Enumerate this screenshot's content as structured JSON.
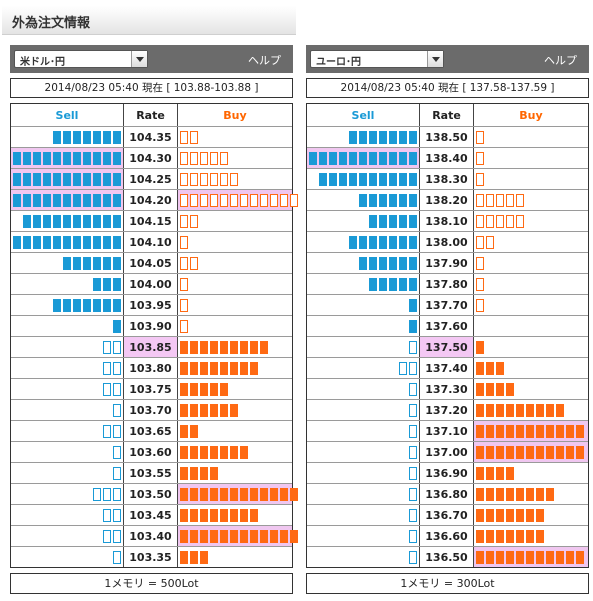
{
  "page": {
    "title": "外為注文情報"
  },
  "colors": {
    "sell": "#1a9ad6",
    "buy": "#ff6a13",
    "highlight": "#f0c7f0",
    "header": "#6b6b6b"
  },
  "panels": [
    {
      "pair": "米ドル･円",
      "help": "ヘルプ",
      "status": "2014/08/23  05:40 現在 [ 103.88-103.88 ]",
      "col_sell": "Sell",
      "col_rate": "Rate",
      "col_buy": "Buy",
      "footer": "1メモリ = 500Lot",
      "rows": [
        {
          "rate": "104.35",
          "sell": 7,
          "sell_type": "f",
          "buy": 2,
          "buy_type": "o",
          "hl_sell": false,
          "hl_buy": false,
          "hl_rate": false
        },
        {
          "rate": "104.30",
          "sell": 11,
          "sell_type": "f",
          "buy": 5,
          "buy_type": "o",
          "hl_sell": true,
          "hl_buy": false,
          "hl_rate": false
        },
        {
          "rate": "104.25",
          "sell": 11,
          "sell_type": "f",
          "buy": 6,
          "buy_type": "o",
          "hl_sell": true,
          "hl_buy": false,
          "hl_rate": false
        },
        {
          "rate": "104.20",
          "sell": 11,
          "sell_type": "f",
          "buy": 12,
          "buy_type": "o",
          "hl_sell": true,
          "hl_buy": true,
          "hl_rate": false
        },
        {
          "rate": "104.15",
          "sell": 10,
          "sell_type": "f",
          "buy": 2,
          "buy_type": "o",
          "hl_sell": false,
          "hl_buy": false,
          "hl_rate": false
        },
        {
          "rate": "104.10",
          "sell": 11,
          "sell_type": "f",
          "buy": 1,
          "buy_type": "o",
          "hl_sell": false,
          "hl_buy": false,
          "hl_rate": false
        },
        {
          "rate": "104.05",
          "sell": 6,
          "sell_type": "f",
          "buy": 2,
          "buy_type": "o",
          "hl_sell": false,
          "hl_buy": false,
          "hl_rate": false
        },
        {
          "rate": "104.00",
          "sell": 3,
          "sell_type": "f",
          "buy": 1,
          "buy_type": "o",
          "hl_sell": false,
          "hl_buy": false,
          "hl_rate": false
        },
        {
          "rate": "103.95",
          "sell": 7,
          "sell_type": "f",
          "buy": 1,
          "buy_type": "o",
          "hl_sell": false,
          "hl_buy": false,
          "hl_rate": false
        },
        {
          "rate": "103.90",
          "sell": 1,
          "sell_type": "f",
          "buy": 1,
          "buy_type": "o",
          "hl_sell": false,
          "hl_buy": false,
          "hl_rate": false
        },
        {
          "rate": "103.85",
          "sell": 2,
          "sell_type": "o",
          "buy": 9,
          "buy_type": "f",
          "hl_sell": false,
          "hl_buy": false,
          "hl_rate": true
        },
        {
          "rate": "103.80",
          "sell": 2,
          "sell_type": "o",
          "buy": 8,
          "buy_type": "f",
          "hl_sell": false,
          "hl_buy": false,
          "hl_rate": false
        },
        {
          "rate": "103.75",
          "sell": 2,
          "sell_type": "o",
          "buy": 5,
          "buy_type": "f",
          "hl_sell": false,
          "hl_buy": false,
          "hl_rate": false
        },
        {
          "rate": "103.70",
          "sell": 1,
          "sell_type": "o",
          "buy": 6,
          "buy_type": "f",
          "hl_sell": false,
          "hl_buy": false,
          "hl_rate": false
        },
        {
          "rate": "103.65",
          "sell": 2,
          "sell_type": "o",
          "buy": 2,
          "buy_type": "f",
          "hl_sell": false,
          "hl_buy": false,
          "hl_rate": false
        },
        {
          "rate": "103.60",
          "sell": 1,
          "sell_type": "o",
          "buy": 7,
          "buy_type": "f",
          "hl_sell": false,
          "hl_buy": false,
          "hl_rate": false
        },
        {
          "rate": "103.55",
          "sell": 1,
          "sell_type": "o",
          "buy": 4,
          "buy_type": "f",
          "hl_sell": false,
          "hl_buy": false,
          "hl_rate": false
        },
        {
          "rate": "103.50",
          "sell": 3,
          "sell_type": "o",
          "buy": 12,
          "buy_type": "f",
          "hl_sell": false,
          "hl_buy": true,
          "hl_rate": false
        },
        {
          "rate": "103.45",
          "sell": 2,
          "sell_type": "o",
          "buy": 8,
          "buy_type": "f",
          "hl_sell": false,
          "hl_buy": false,
          "hl_rate": false
        },
        {
          "rate": "103.40",
          "sell": 2,
          "sell_type": "o",
          "buy": 12,
          "buy_type": "f",
          "hl_sell": false,
          "hl_buy": true,
          "hl_rate": false
        },
        {
          "rate": "103.35",
          "sell": 1,
          "sell_type": "o",
          "buy": 3,
          "buy_type": "f",
          "hl_sell": false,
          "hl_buy": false,
          "hl_rate": false
        }
      ]
    },
    {
      "pair": "ユーロ･円",
      "help": "ヘルプ",
      "status": "2014/08/23  05:40 現在 [ 137.58-137.59 ]",
      "col_sell": "Sell",
      "col_rate": "Rate",
      "col_buy": "Buy",
      "footer": "1メモリ = 300Lot",
      "rows": [
        {
          "rate": "138.50",
          "sell": 7,
          "sell_type": "f",
          "buy": 1,
          "buy_type": "o",
          "hl_sell": false,
          "hl_buy": false,
          "hl_rate": false
        },
        {
          "rate": "138.40",
          "sell": 11,
          "sell_type": "f",
          "buy": 1,
          "buy_type": "o",
          "hl_sell": true,
          "hl_buy": false,
          "hl_rate": false
        },
        {
          "rate": "138.30",
          "sell": 10,
          "sell_type": "f",
          "buy": 1,
          "buy_type": "o",
          "hl_sell": false,
          "hl_buy": false,
          "hl_rate": false
        },
        {
          "rate": "138.20",
          "sell": 6,
          "sell_type": "f",
          "buy": 5,
          "buy_type": "o",
          "hl_sell": false,
          "hl_buy": false,
          "hl_rate": false
        },
        {
          "rate": "138.10",
          "sell": 5,
          "sell_type": "f",
          "buy": 5,
          "buy_type": "o",
          "hl_sell": false,
          "hl_buy": false,
          "hl_rate": false
        },
        {
          "rate": "138.00",
          "sell": 7,
          "sell_type": "f",
          "buy": 2,
          "buy_type": "o",
          "hl_sell": false,
          "hl_buy": false,
          "hl_rate": false
        },
        {
          "rate": "137.90",
          "sell": 6,
          "sell_type": "f",
          "buy": 1,
          "buy_type": "o",
          "hl_sell": false,
          "hl_buy": false,
          "hl_rate": false
        },
        {
          "rate": "137.80",
          "sell": 5,
          "sell_type": "f",
          "buy": 1,
          "buy_type": "o",
          "hl_sell": false,
          "hl_buy": false,
          "hl_rate": false
        },
        {
          "rate": "137.70",
          "sell": 1,
          "sell_type": "f",
          "buy": 1,
          "buy_type": "o",
          "hl_sell": false,
          "hl_buy": false,
          "hl_rate": false
        },
        {
          "rate": "137.60",
          "sell": 1,
          "sell_type": "f",
          "buy": 0,
          "buy_type": "o",
          "hl_sell": false,
          "hl_buy": false,
          "hl_rate": false
        },
        {
          "rate": "137.50",
          "sell": 1,
          "sell_type": "o",
          "buy": 1,
          "buy_type": "f",
          "hl_sell": false,
          "hl_buy": false,
          "hl_rate": true
        },
        {
          "rate": "137.40",
          "sell": 2,
          "sell_type": "o",
          "buy": 3,
          "buy_type": "f",
          "hl_sell": false,
          "hl_buy": false,
          "hl_rate": false
        },
        {
          "rate": "137.30",
          "sell": 1,
          "sell_type": "o",
          "buy": 4,
          "buy_type": "f",
          "hl_sell": false,
          "hl_buy": false,
          "hl_rate": false
        },
        {
          "rate": "137.20",
          "sell": 1,
          "sell_type": "o",
          "buy": 9,
          "buy_type": "f",
          "hl_sell": false,
          "hl_buy": false,
          "hl_rate": false
        },
        {
          "rate": "137.10",
          "sell": 1,
          "sell_type": "o",
          "buy": 11,
          "buy_type": "f",
          "hl_sell": false,
          "hl_buy": true,
          "hl_rate": false
        },
        {
          "rate": "137.00",
          "sell": 1,
          "sell_type": "o",
          "buy": 11,
          "buy_type": "f",
          "hl_sell": false,
          "hl_buy": true,
          "hl_rate": false
        },
        {
          "rate": "136.90",
          "sell": 1,
          "sell_type": "o",
          "buy": 4,
          "buy_type": "f",
          "hl_sell": false,
          "hl_buy": false,
          "hl_rate": false
        },
        {
          "rate": "136.80",
          "sell": 1,
          "sell_type": "o",
          "buy": 8,
          "buy_type": "f",
          "hl_sell": false,
          "hl_buy": false,
          "hl_rate": false
        },
        {
          "rate": "136.70",
          "sell": 1,
          "sell_type": "o",
          "buy": 7,
          "buy_type": "f",
          "hl_sell": false,
          "hl_buy": false,
          "hl_rate": false
        },
        {
          "rate": "136.60",
          "sell": 1,
          "sell_type": "o",
          "buy": 7,
          "buy_type": "f",
          "hl_sell": false,
          "hl_buy": false,
          "hl_rate": false
        },
        {
          "rate": "136.50",
          "sell": 1,
          "sell_type": "o",
          "buy": 11,
          "buy_type": "f",
          "hl_sell": false,
          "hl_buy": true,
          "hl_rate": false
        }
      ]
    }
  ]
}
